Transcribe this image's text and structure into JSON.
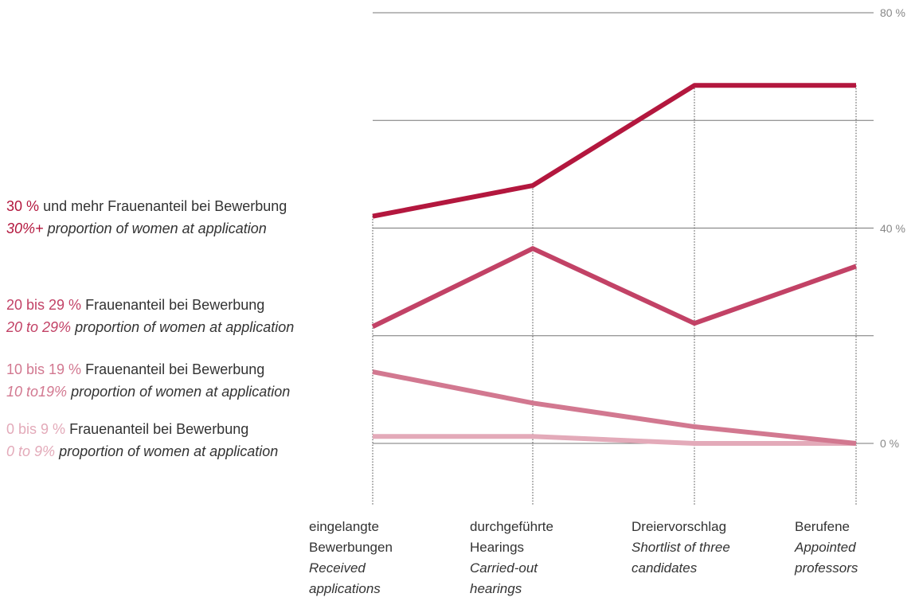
{
  "chart_data": {
    "type": "line",
    "categories": [
      "eingelangte Bewerbungen",
      "durchgeführte Hearings",
      "Dreiervorschlag",
      "Berufene"
    ],
    "categories_en": [
      "Received applications",
      "Carried-out hearings",
      "Shortlist of three candidates",
      "Appointed professors"
    ],
    "series": [
      {
        "name_prefix": "30 %",
        "name": "und mehr Frauenanteil bei Bewerbung",
        "name_en_prefix": "30%+",
        "name_en": "proportion of women at application",
        "color": "#b3173e",
        "values": [
          42.2,
          47.9,
          66.5,
          66.5
        ]
      },
      {
        "name_prefix": "20 bis 29 %",
        "name": "Frauenanteil bei Bewerbung",
        "name_en_prefix": "20 to 29%",
        "name_en": "proportion of women at application",
        "color": "#c24266",
        "values": [
          21.7,
          36.2,
          22.3,
          32.9
        ]
      },
      {
        "name_prefix": "10 bis 19 %",
        "name": "Frauenanteil bei Bewerbung",
        "name_en_prefix": "10 to19%",
        "name_en": "proportion of women at application",
        "color": "#d27890",
        "values": [
          13.3,
          7.5,
          3.1,
          0
        ]
      },
      {
        "name_prefix": "0 bis 9 %",
        "name": "Frauenanteil bei Bewerbung",
        "name_en_prefix": "0 to 9%",
        "name_en": "proportion of women at application",
        "color": "#e3aab9",
        "values": [
          1.3,
          1.3,
          0,
          0
        ]
      }
    ],
    "ylim": [
      0,
      80
    ],
    "yticks": [
      {
        "value": 0,
        "label": "0 %"
      },
      {
        "value": 40,
        "label": "40 %"
      },
      {
        "value": 80,
        "label": "80 %"
      }
    ],
    "minor_yticks": [
      20,
      60
    ],
    "grid": true
  }
}
